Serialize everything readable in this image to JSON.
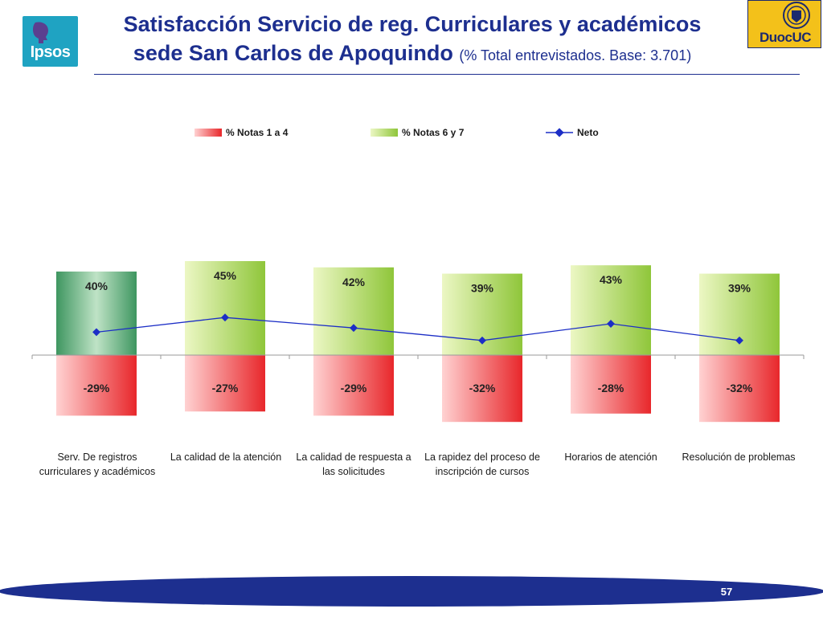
{
  "header": {
    "title_line1": "Satisfacción Servicio de reg. Curriculares y académicos",
    "title_line2": "sede San Carlos de Apoquindo",
    "title_sub": "(% Total entrevistados. Base: 3.701)",
    "ipsos_logo_text": "Ipsos",
    "duoc_logo_text": "DuocUC"
  },
  "legend": {
    "neg_label": "% Notas 1 a 4",
    "pos_label": "% Notas 6 y 7",
    "net_label": "Neto"
  },
  "colors": {
    "title": "#1d2f8f",
    "negative": "#e8272b",
    "positive": "#8fc63a",
    "positive_highlight": "#3e9660",
    "net_line": "#1c2ec6",
    "footer_band": "#1d2f8f"
  },
  "chart_data": {
    "type": "bar",
    "categories": [
      "Serv. De registros curriculares y académicos",
      "La calidad de la atención",
      "La calidad de respuesta a las solicitudes",
      "La rapidez del proceso de inscripción de cursos",
      "Horarios de atención",
      "Resolución de problemas"
    ],
    "series": [
      {
        "name": "% Notas 1 a 4",
        "values": [
          -29,
          -27,
          -29,
          -32,
          -28,
          -32
        ],
        "labels": [
          "-29%",
          "-27%",
          "-29%",
          "-32%",
          "-28%",
          "-32%"
        ]
      },
      {
        "name": "% Notas 6 y 7",
        "values": [
          40,
          45,
          42,
          39,
          43,
          39
        ],
        "labels": [
          "40%",
          "45%",
          "42%",
          "39%",
          "43%",
          "39%"
        ]
      },
      {
        "name": "Neto",
        "values": [
          11,
          18,
          13,
          7,
          15,
          7
        ]
      }
    ],
    "ylim": [
      -40,
      50
    ],
    "grid": false,
    "legend_position": "top"
  },
  "footer": {
    "page_number": "57"
  }
}
